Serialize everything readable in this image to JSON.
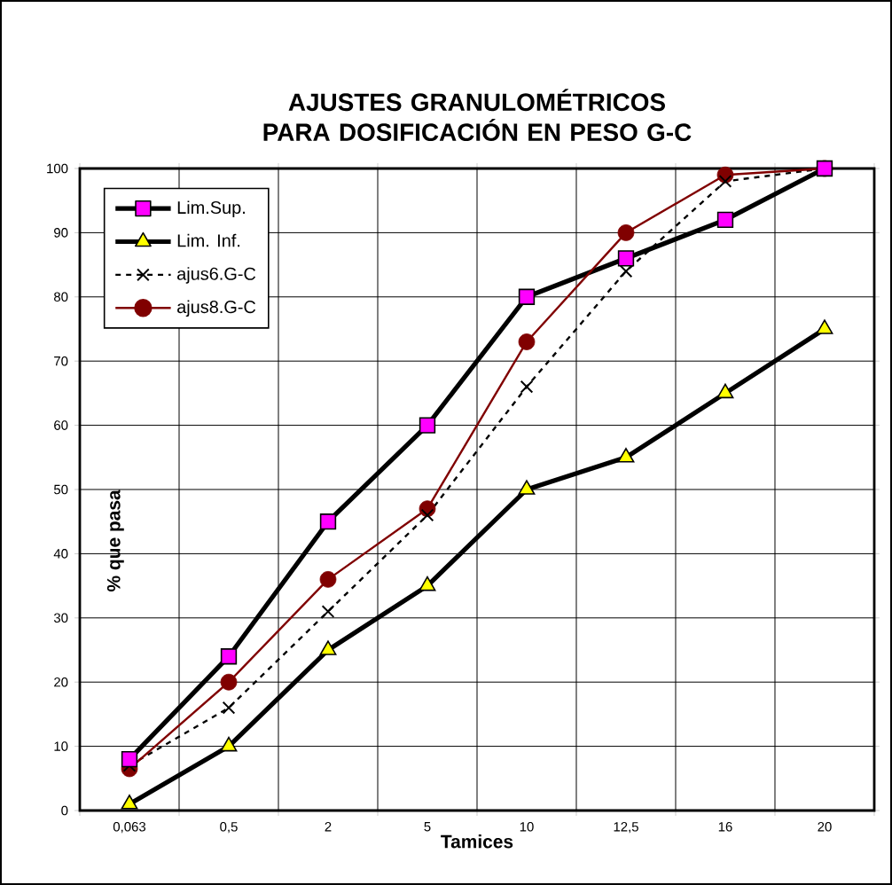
{
  "chart_data": {
    "type": "line",
    "title": "AJUSTES GRANULOMÉTRICOS PARA DOSIFICACIÓN EN PESO G-C",
    "xlabel": "Tamices",
    "ylabel": "% que pasa",
    "categories": [
      "0,063",
      "0,5",
      "2",
      "5",
      "10",
      "12,5",
      "16",
      "20"
    ],
    "ylim": [
      0,
      100
    ],
    "yticks": [
      0,
      10,
      20,
      30,
      40,
      50,
      60,
      70,
      80,
      90,
      100
    ],
    "grid": true,
    "legend": "top left",
    "series": [
      {
        "name": "Lim.Sup.",
        "color": "#000000",
        "colors": [
          "#ff00ff",
          "#ff00ff",
          "#ff00ff",
          "#ff00ff",
          "#ff00ff",
          "#ff00ff",
          "#ff00ff",
          "#ff00ff"
        ],
        "marker": "square",
        "line_style": "solid",
        "values": [
          8,
          24,
          45,
          60,
          80,
          86,
          92,
          100
        ]
      },
      {
        "name": "Lim. Inf.",
        "color": "#000000",
        "colors": [
          "#ffff00",
          "#ffff00",
          "#ffff00",
          "#ffff00",
          "#ffff00",
          "#ffff00",
          "#ffff00",
          "#ffff00"
        ],
        "marker": "triangle",
        "line_style": "solid",
        "values": [
          1,
          10,
          25,
          35,
          50,
          55,
          65,
          75
        ]
      },
      {
        "name": "ajus6.G-C",
        "color": "#000000",
        "marker": "cross",
        "line_style": "dashed",
        "values": [
          7,
          16,
          31,
          46,
          66,
          84,
          98,
          100
        ]
      },
      {
        "name": "ajus8.G-C",
        "color": "#800000",
        "marker": "circle",
        "line_style": "solid",
        "values": [
          6.5,
          20,
          36,
          47,
          73,
          90,
          99,
          100
        ]
      }
    ]
  }
}
